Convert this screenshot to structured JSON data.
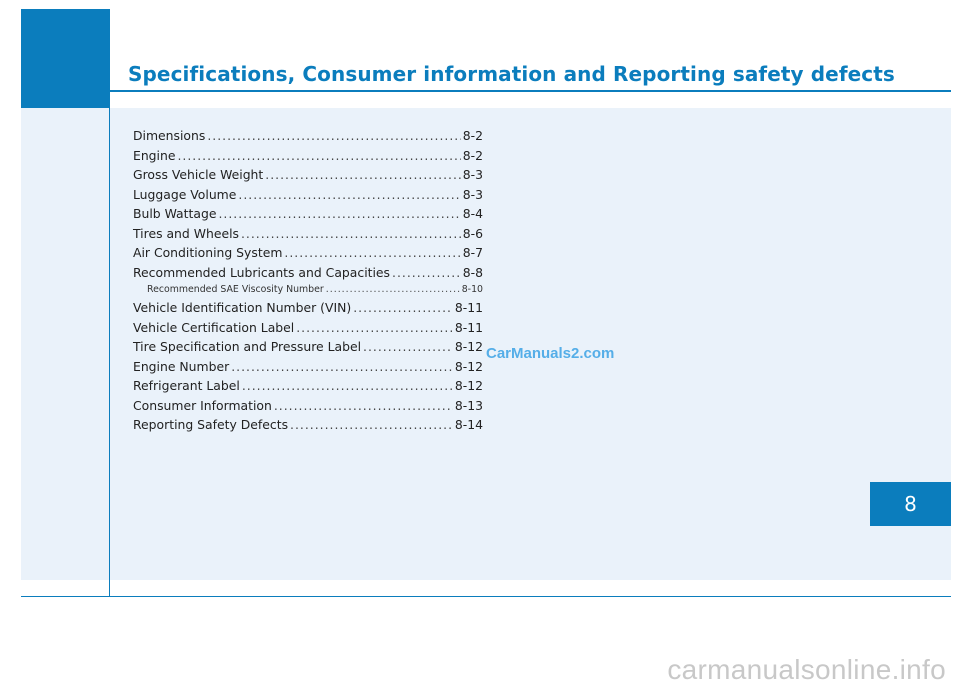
{
  "title": "Specifications, Consumer information and Reporting safety defects",
  "chapter_number": "8",
  "toc": [
    {
      "label": "Dimensions",
      "page": "8-2",
      "sub": false
    },
    {
      "label": "Engine",
      "page": "8-2",
      "sub": false
    },
    {
      "label": "Gross Vehicle Weight",
      "page": "8-3",
      "sub": false
    },
    {
      "label": "Luggage Volume",
      "page": "8-3",
      "sub": false
    },
    {
      "label": "Bulb Wattage",
      "page": "8-4",
      "sub": false
    },
    {
      "label": "Tires and Wheels",
      "page": "8-6",
      "sub": false
    },
    {
      "label": "Air Conditioning System",
      "page": "8-7",
      "sub": false
    },
    {
      "label": "Recommended Lubricants and Capacities",
      "page": "8-8",
      "sub": false
    },
    {
      "label": "Recommended SAE Viscosity Number",
      "page": "8-10",
      "sub": true
    },
    {
      "label": "Vehicle Identification Number (VIN)",
      "page": "8-11",
      "sub": false
    },
    {
      "label": "Vehicle Certification Label",
      "page": "8-11",
      "sub": false
    },
    {
      "label": "Tire Specification and Pressure Label",
      "page": "8-12",
      "sub": false
    },
    {
      "label": "Engine Number",
      "page": "8-12",
      "sub": false
    },
    {
      "label": "Refrigerant Label",
      "page": "8-12",
      "sub": false
    },
    {
      "label": "Consumer Information",
      "page": "8-13",
      "sub": false
    },
    {
      "label": "Reporting Safety Defects",
      "page": "8-14",
      "sub": false
    }
  ],
  "watermark": "CarManuals2.com",
  "footer_watermark": "carmanualsonline.info",
  "colors": {
    "accent": "#0b7dbd",
    "panel": "#eaf2fa"
  }
}
